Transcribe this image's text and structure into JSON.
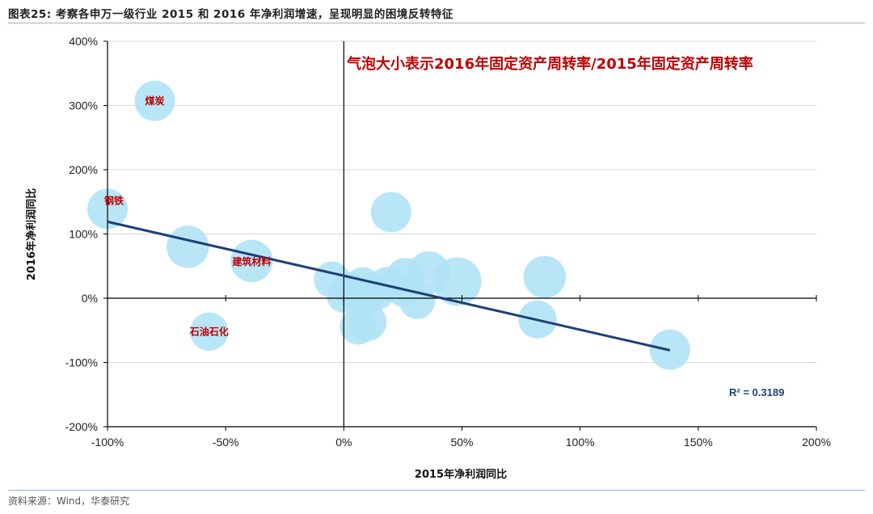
{
  "figure": {
    "title": "图表25:  考察各申万一级行业 2015 和 2016 年净利润增速，呈现明显的困境反转特征",
    "source": "资料来源：Wind，华泰研究"
  },
  "chart_data": {
    "type": "scatter",
    "subtype": "bubble",
    "annotation": "气泡大小表示2016年固定资产周转率/2015年固定资产周转率",
    "xlabel": "2015年净利润同比",
    "ylabel": "2016年净利润同比",
    "xlim": [
      -100,
      200
    ],
    "ylim": [
      -200,
      400
    ],
    "x_unit": "%",
    "y_unit": "%",
    "x_ticks": [
      "-100%",
      "-50%",
      "0%",
      "50%",
      "100%",
      "150%",
      "200%"
    ],
    "y_ticks": [
      "400%",
      "300%",
      "200%",
      "100%",
      "0%",
      "-100%",
      "-200%"
    ],
    "grid": "horizontal only",
    "bubble_color": "#aee3f6",
    "trendline_color": "#1f3f78",
    "label_color": "#c00000",
    "r_squared": "R² = 0.3189",
    "trendline": {
      "x": [
        -100,
        138
      ],
      "y": [
        119,
        -81
      ]
    },
    "points": [
      {
        "label": "煤炭",
        "x": -80,
        "y": 307,
        "size": 1.0
      },
      {
        "label": "钢铁",
        "x": -100,
        "y": 139,
        "size": 1.0
      },
      {
        "label": "",
        "x": -66,
        "y": 80,
        "size": 1.05
      },
      {
        "label": "建筑材料",
        "x": -39,
        "y": 58,
        "size": 1.05
      },
      {
        "label": "石油石化",
        "x": -57,
        "y": -52,
        "size": 0.95
      },
      {
        "label": "",
        "x": 20,
        "y": 134,
        "size": 1.0
      },
      {
        "label": "",
        "x": 85,
        "y": 33,
        "size": 1.05
      },
      {
        "label": "",
        "x": 82,
        "y": -33,
        "size": 0.95
      },
      {
        "label": "",
        "x": 138,
        "y": -80,
        "size": 1.0
      },
      {
        "label": "",
        "x": 48,
        "y": 26,
        "size": 1.2
      },
      {
        "label": "",
        "x": 36,
        "y": 40,
        "size": 1.05
      },
      {
        "label": "",
        "x": 31,
        "y": -4,
        "size": 0.9
      },
      {
        "label": "",
        "x": 26,
        "y": 33,
        "size": 0.95
      },
      {
        "label": "",
        "x": 25,
        "y": 12,
        "size": 0.8
      },
      {
        "label": "",
        "x": 18,
        "y": 22,
        "size": 0.85
      },
      {
        "label": "",
        "x": 14,
        "y": 10,
        "size": 0.9
      },
      {
        "label": "",
        "x": 10,
        "y": -37,
        "size": 0.95
      },
      {
        "label": "",
        "x": 6,
        "y": -44,
        "size": 0.9
      },
      {
        "label": "",
        "x": 8,
        "y": 20,
        "size": 0.9
      },
      {
        "label": "",
        "x": 9,
        "y": 2,
        "size": 0.9
      },
      {
        "label": "",
        "x": 4,
        "y": 8,
        "size": 0.85
      },
      {
        "label": "",
        "x": 2,
        "y": 16,
        "size": 0.8
      },
      {
        "label": "",
        "x": 0,
        "y": 4,
        "size": 0.85
      },
      {
        "label": "",
        "x": 12,
        "y": 14,
        "size": 0.8
      },
      {
        "label": "",
        "x": -5,
        "y": 29,
        "size": 0.9
      }
    ]
  }
}
